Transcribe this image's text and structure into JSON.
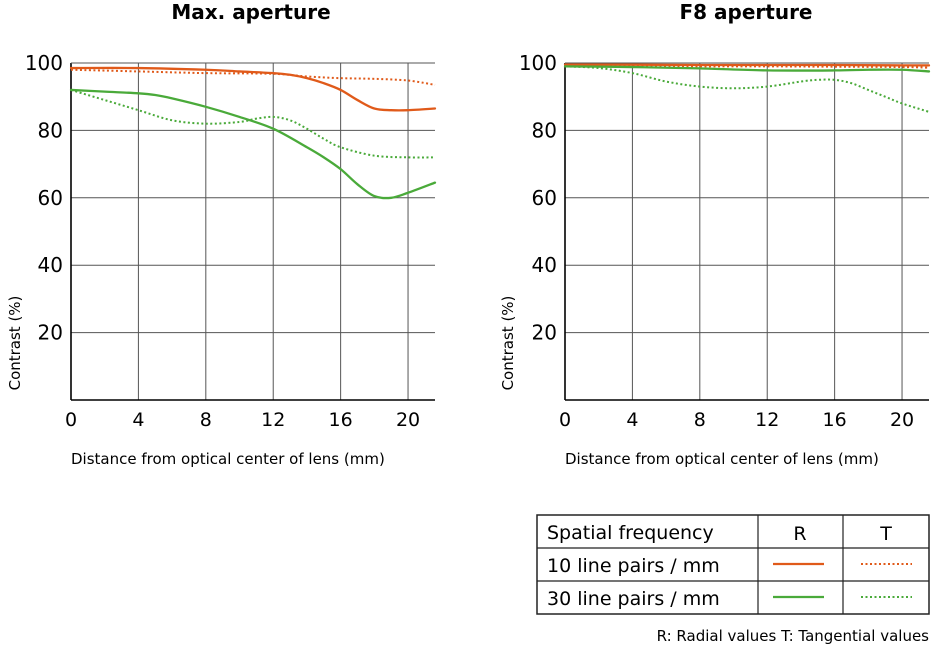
{
  "chart_data": [
    {
      "type": "line",
      "title": "Max. aperture",
      "xlabel": "Distance from optical center of lens (mm)",
      "ylabel": "Contrast (%)",
      "xlim": [
        0,
        21.6
      ],
      "ylim": [
        0,
        100
      ],
      "xticks": [
        "0",
        "4",
        "8",
        "12",
        "16",
        "20"
      ],
      "yticks": [
        "20",
        "40",
        "60",
        "80",
        "100"
      ],
      "series": [
        {
          "name": "10 line pairs / mm R",
          "color": "#e05a1a",
          "dash": "solid",
          "x": [
            0,
            4,
            8,
            10,
            12,
            13,
            14,
            15,
            16,
            17,
            18,
            19,
            20,
            21.6
          ],
          "y": [
            98.5,
            98.5,
            98,
            97.5,
            97,
            96.5,
            95.5,
            94,
            92,
            89,
            86.5,
            86,
            86,
            86.5
          ]
        },
        {
          "name": "10 line pairs / mm T",
          "color": "#e05a1a",
          "dash": "dot",
          "x": [
            0,
            4,
            8,
            12,
            14,
            16,
            18,
            20,
            21.6
          ],
          "y": [
            98,
            97.5,
            97,
            96.8,
            96,
            95.5,
            95.3,
            94.8,
            93.5
          ]
        },
        {
          "name": "30 line pairs / mm R",
          "color": "#4aaa3a",
          "dash": "solid",
          "x": [
            0,
            2,
            4,
            5,
            6,
            8,
            10,
            12,
            14,
            15,
            16,
            17,
            18,
            19,
            20,
            21.6
          ],
          "y": [
            92,
            91.5,
            91,
            90.5,
            89.5,
            87,
            84,
            80.5,
            75,
            72,
            68.5,
            64,
            60.5,
            60,
            61.5,
            64.5
          ]
        },
        {
          "name": "30 line pairs / mm T",
          "color": "#4aaa3a",
          "dash": "dot",
          "x": [
            0,
            2,
            4,
            6,
            8,
            10,
            11,
            12,
            13,
            14,
            15,
            16,
            18,
            20,
            21.6
          ],
          "y": [
            92,
            89,
            86,
            83,
            82,
            82.5,
            83.5,
            84,
            83,
            80.5,
            77.5,
            75,
            72.5,
            72,
            72
          ]
        }
      ]
    },
    {
      "type": "line",
      "title": "F8 aperture",
      "xlabel": "Distance from optical center of lens (mm)",
      "ylabel": "Contrast (%)",
      "xlim": [
        0,
        21.6
      ],
      "ylim": [
        0,
        100
      ],
      "xticks": [
        "0",
        "4",
        "8",
        "12",
        "16",
        "20"
      ],
      "yticks": [
        "20",
        "40",
        "60",
        "80",
        "100"
      ],
      "series": [
        {
          "name": "10 line pairs / mm R",
          "color": "#e05a1a",
          "dash": "solid",
          "x": [
            0,
            4,
            8,
            12,
            16,
            20,
            21.6
          ],
          "y": [
            99.5,
            99.5,
            99.4,
            99.4,
            99.4,
            99.3,
            99.3
          ]
        },
        {
          "name": "10 line pairs / mm T",
          "color": "#e05a1a",
          "dash": "dot",
          "x": [
            0,
            4,
            8,
            12,
            16,
            20,
            21.6
          ],
          "y": [
            99.2,
            99.1,
            99,
            99,
            98.9,
            98.8,
            98.6
          ]
        },
        {
          "name": "30 line pairs / mm R",
          "color": "#4aaa3a",
          "dash": "solid",
          "x": [
            0,
            4,
            8,
            12,
            16,
            18,
            20,
            21.6
          ],
          "y": [
            99,
            98.8,
            98.4,
            97.8,
            97.8,
            98,
            98,
            97.5
          ]
        },
        {
          "name": "30 line pairs / mm T",
          "color": "#4aaa3a",
          "dash": "dot",
          "x": [
            0,
            2,
            4,
            6,
            8,
            10,
            12,
            14,
            15,
            16,
            17,
            18,
            19,
            20,
            21.6
          ],
          "y": [
            99,
            98.5,
            97,
            94.5,
            93,
            92.5,
            93,
            94.5,
            95,
            95,
            94,
            92,
            90,
            88,
            85.5
          ]
        }
      ]
    }
  ],
  "legend": {
    "header": "Spatial frequency",
    "col_r": "R",
    "col_t": "T",
    "rows": [
      {
        "label": "10 line pairs / mm",
        "color": "#e05a1a"
      },
      {
        "label": "30 line pairs / mm",
        "color": "#4aaa3a"
      }
    ]
  },
  "footnote": "R: Radial values  T: Tangential values",
  "colors": {
    "grid": "#555555",
    "axis": "#000000",
    "text": "#1a1a1a"
  }
}
